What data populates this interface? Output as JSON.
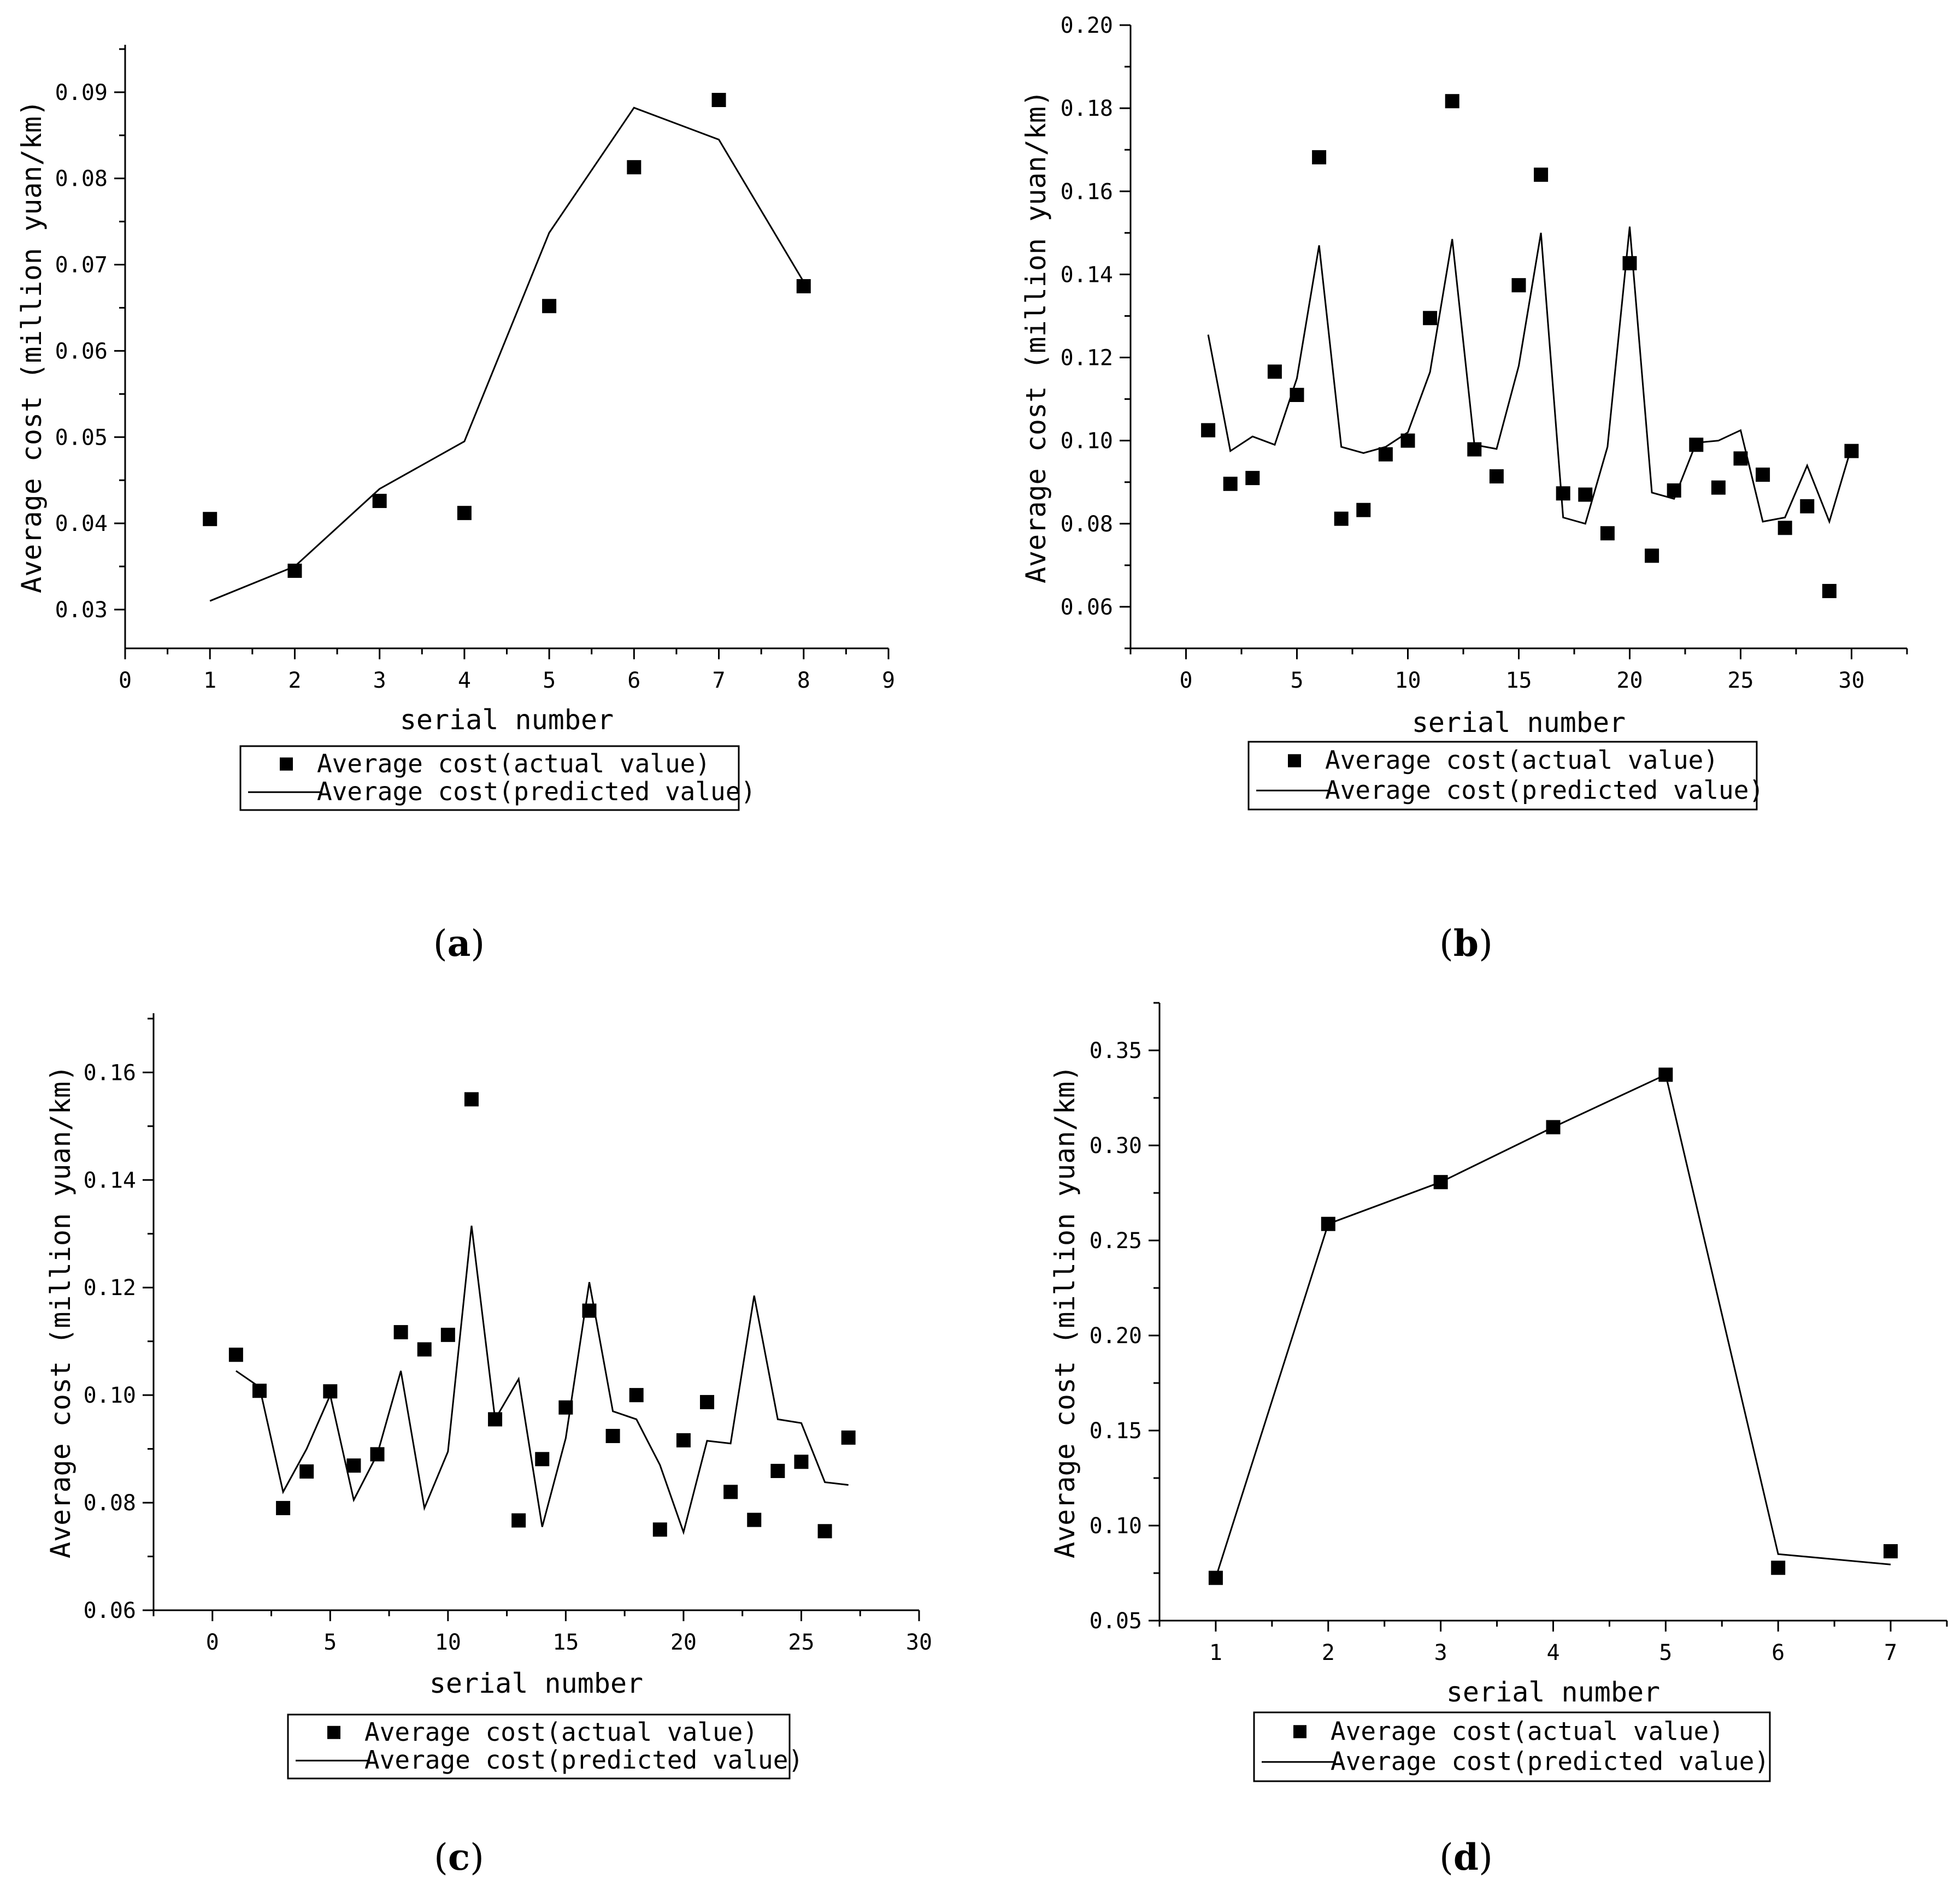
{
  "figure": {
    "legend_actual_label": "Average cost(actual value)",
    "legend_predicted_label": "Average cost(predicted value)"
  },
  "chart_data": [
    {
      "panel": "a",
      "type": "scatter+line",
      "xlabel": "serial number",
      "ylabel": "Average cost (million yuan/km)",
      "xlim": [
        0,
        9
      ],
      "ylim": [
        0.0255,
        0.0955
      ],
      "xticks": [
        0,
        1,
        2,
        3,
        4,
        5,
        6,
        7,
        8,
        9
      ],
      "yticks": [
        0.03,
        0.04,
        0.05,
        0.06,
        0.07,
        0.08,
        0.09
      ],
      "ytick_labels": [
        "0.03",
        "0.04",
        "0.05",
        "0.06",
        "0.07",
        "0.08",
        "0.09"
      ],
      "legend": "bottom",
      "series": [
        {
          "name": "Average cost(actual value)",
          "style": "square-markers",
          "x": [
            1,
            2,
            3,
            4,
            5,
            6,
            7,
            8
          ],
          "values": [
            0.0405,
            0.0345,
            0.0426,
            0.0412,
            0.0652,
            0.0813,
            0.0891,
            0.0675
          ]
        },
        {
          "name": "Average cost(predicted value)",
          "style": "line",
          "x": [
            1,
            2,
            3,
            4,
            5,
            6,
            7,
            8
          ],
          "values": [
            0.031,
            0.035,
            0.044,
            0.0495,
            0.0737,
            0.0882,
            0.0845,
            0.068
          ]
        }
      ]
    },
    {
      "panel": "b",
      "type": "scatter+line",
      "xlabel": "serial number",
      "ylabel": "Average cost (million yuan/km)",
      "xlim": [
        -2.5,
        32.5
      ],
      "ylim": [
        0.05,
        0.2
      ],
      "xticks": [
        0,
        5,
        10,
        15,
        20,
        25,
        30
      ],
      "yticks": [
        0.06,
        0.08,
        0.1,
        0.12,
        0.14,
        0.16,
        0.18,
        0.2
      ],
      "ytick_labels": [
        "0.06",
        "0.08",
        "0.10",
        "0.12",
        "0.14",
        "0.16",
        "0.18",
        "0.20"
      ],
      "legend": "bottom",
      "series": [
        {
          "name": "Average cost(actual value)",
          "style": "square-markers",
          "x": [
            1,
            2,
            3,
            4,
            5,
            6,
            7,
            8,
            9,
            10,
            11,
            12,
            13,
            14,
            15,
            16,
            17,
            18,
            19,
            20,
            21,
            22,
            23,
            24,
            25,
            26,
            27,
            28,
            29,
            30
          ],
          "values": [
            0.1025,
            0.0896,
            0.091,
            0.1166,
            0.111,
            0.1682,
            0.0812,
            0.0833,
            0.0967,
            0.1,
            0.1295,
            0.1817,
            0.0979,
            0.0914,
            0.1374,
            0.164,
            0.0873,
            0.087,
            0.0777,
            0.1427,
            0.0723,
            0.088,
            0.099,
            0.0887,
            0.0957,
            0.0918,
            0.079,
            0.0842,
            0.0638,
            0.0975
          ]
        },
        {
          "name": "Average cost(predicted value)",
          "style": "line",
          "x": [
            1,
            2,
            3,
            4,
            5,
            6,
            7,
            8,
            9,
            10,
            11,
            12,
            13,
            14,
            15,
            16,
            17,
            18,
            19,
            20,
            21,
            22,
            23,
            24,
            25,
            26,
            27,
            28,
            29,
            30
          ],
          "values": [
            0.1255,
            0.0975,
            0.101,
            0.099,
            0.115,
            0.147,
            0.0985,
            0.097,
            0.0985,
            0.102,
            0.1165,
            0.1485,
            0.099,
            0.098,
            0.118,
            0.15,
            0.0815,
            0.08,
            0.0985,
            0.1515,
            0.0875,
            0.086,
            0.0995,
            0.1,
            0.1025,
            0.0805,
            0.0815,
            0.094,
            0.0805,
            0.0985
          ]
        }
      ]
    },
    {
      "panel": "c",
      "type": "scatter+line",
      "xlabel": "serial number",
      "ylabel": "Average cost (million yuan/km)",
      "xlim": [
        -2.5,
        30
      ],
      "ylim": [
        0.06,
        0.171
      ],
      "xticks": [
        0,
        5,
        10,
        15,
        20,
        25,
        30
      ],
      "yticks": [
        0.06,
        0.08,
        0.1,
        0.12,
        0.14,
        0.16
      ],
      "ytick_labels": [
        "0.06",
        "0.08",
        "0.10",
        "0.12",
        "0.14",
        "0.16"
      ],
      "legend": "bottom",
      "series": [
        {
          "name": "Average cost(actual value)",
          "style": "square-markers",
          "x": [
            1,
            2,
            3,
            4,
            5,
            6,
            7,
            8,
            9,
            10,
            11,
            12,
            13,
            14,
            15,
            16,
            17,
            18,
            19,
            20,
            21,
            22,
            23,
            24,
            25,
            26,
            27
          ],
          "values": [
            0.1075,
            0.1008,
            0.079,
            0.0858,
            0.1007,
            0.0869,
            0.089,
            0.1117,
            0.1085,
            0.1112,
            0.155,
            0.0955,
            0.0767,
            0.0881,
            0.0977,
            0.1157,
            0.0924,
            0.1,
            0.075,
            0.0916,
            0.0987,
            0.082,
            0.0768,
            0.0859,
            0.0876,
            0.0747,
            0.0921
          ]
        },
        {
          "name": "Average cost(predicted value)",
          "style": "line",
          "x": [
            1,
            2,
            3,
            4,
            5,
            6,
            7,
            8,
            9,
            10,
            11,
            12,
            13,
            14,
            15,
            16,
            17,
            18,
            19,
            20,
            21,
            22,
            23,
            24,
            25,
            26,
            27
          ],
          "values": [
            0.1045,
            0.1015,
            0.082,
            0.09,
            0.1,
            0.0805,
            0.089,
            0.1045,
            0.079,
            0.0895,
            0.1315,
            0.0955,
            0.103,
            0.0755,
            0.092,
            0.121,
            0.097,
            0.0955,
            0.087,
            0.0745,
            0.0915,
            0.091,
            0.1185,
            0.0955,
            0.0948,
            0.0838,
            0.0833
          ]
        }
      ]
    },
    {
      "panel": "d",
      "type": "scatter+line",
      "xlabel": "serial number",
      "ylabel": "Average cost (million yuan/km)",
      "xlim": [
        0.5,
        7.5
      ],
      "ylim": [
        0.05,
        0.375
      ],
      "xticks": [
        1,
        2,
        3,
        4,
        5,
        6,
        7
      ],
      "yticks": [
        0.05,
        0.1,
        0.15,
        0.2,
        0.25,
        0.3,
        0.35
      ],
      "ytick_labels": [
        "0.05",
        "0.10",
        "0.15",
        "0.20",
        "0.25",
        "0.30",
        "0.35"
      ],
      "legend": "bottom",
      "series": [
        {
          "name": "Average cost(actual value)",
          "style": "square-markers",
          "x": [
            1,
            2,
            3,
            4,
            5,
            6,
            7
          ],
          "values": [
            0.0725,
            0.2587,
            0.2807,
            0.3096,
            0.3372,
            0.0778,
            0.0865
          ]
        },
        {
          "name": "Average cost(predicted value)",
          "style": "line",
          "x": [
            1,
            2,
            3,
            4,
            5,
            6,
            7
          ],
          "values": [
            0.0725,
            0.2587,
            0.2807,
            0.3096,
            0.3372,
            0.085,
            0.0795
          ]
        }
      ]
    }
  ]
}
